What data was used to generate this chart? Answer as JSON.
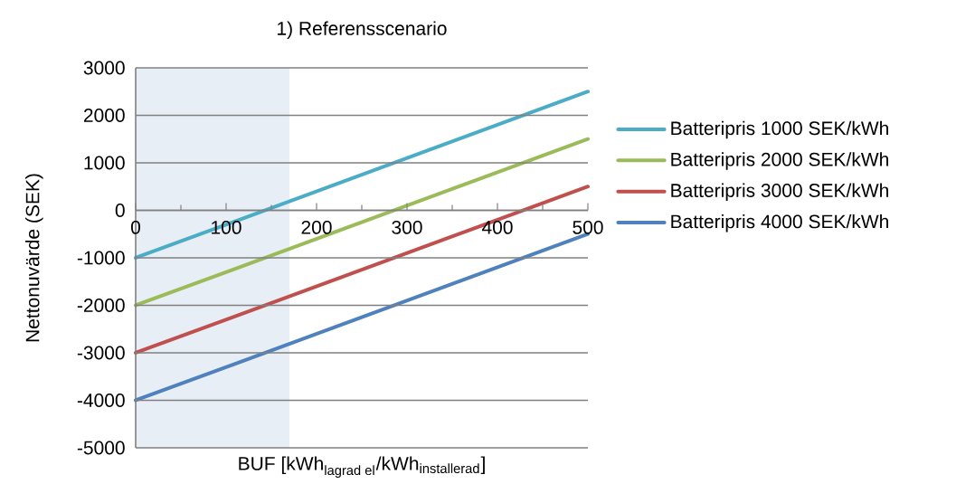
{
  "chart_data": {
    "type": "line",
    "title": "1) Referensscenario",
    "xlabel": "\\text{BUF [kWh}_{\\text{lagrad el}}\\text{/kWh}_{\\text{installerad}}\\text{]}",
    "ylabel": "Nettonuvärde (SEK)",
    "x": [
      0,
      500
    ],
    "series": [
      {
        "name": "Batteripris 1000 SEK/kWh",
        "color": "#4bacc6",
        "values": [
          -1000,
          2500
        ]
      },
      {
        "name": "Batteripris 2000 SEK/kWh",
        "color": "#9bbb59",
        "values": [
          -2000,
          1500
        ]
      },
      {
        "name": "Batteripris 3000 SEK/kWh",
        "color": "#c0504d",
        "values": [
          -3000,
          500
        ]
      },
      {
        "name": "Batteripris 4000 SEK/kWh",
        "color": "#4f81bd",
        "values": [
          -4000,
          -500
        ]
      }
    ],
    "xlim": [
      0,
      500
    ],
    "xticks": [
      0,
      100,
      200,
      300,
      400,
      500
    ],
    "ylim": [
      -5000,
      3000
    ],
    "yticks": [
      -5000,
      -4000,
      -3000,
      -2000,
      -1000,
      0,
      1000,
      2000,
      3000
    ],
    "bands": [
      {
        "axis": "x",
        "from": 0,
        "to": 170,
        "color": "#e8eef5"
      }
    ],
    "grid": "y",
    "legend": "right",
    "marker": "none",
    "line_style": "solid"
  }
}
